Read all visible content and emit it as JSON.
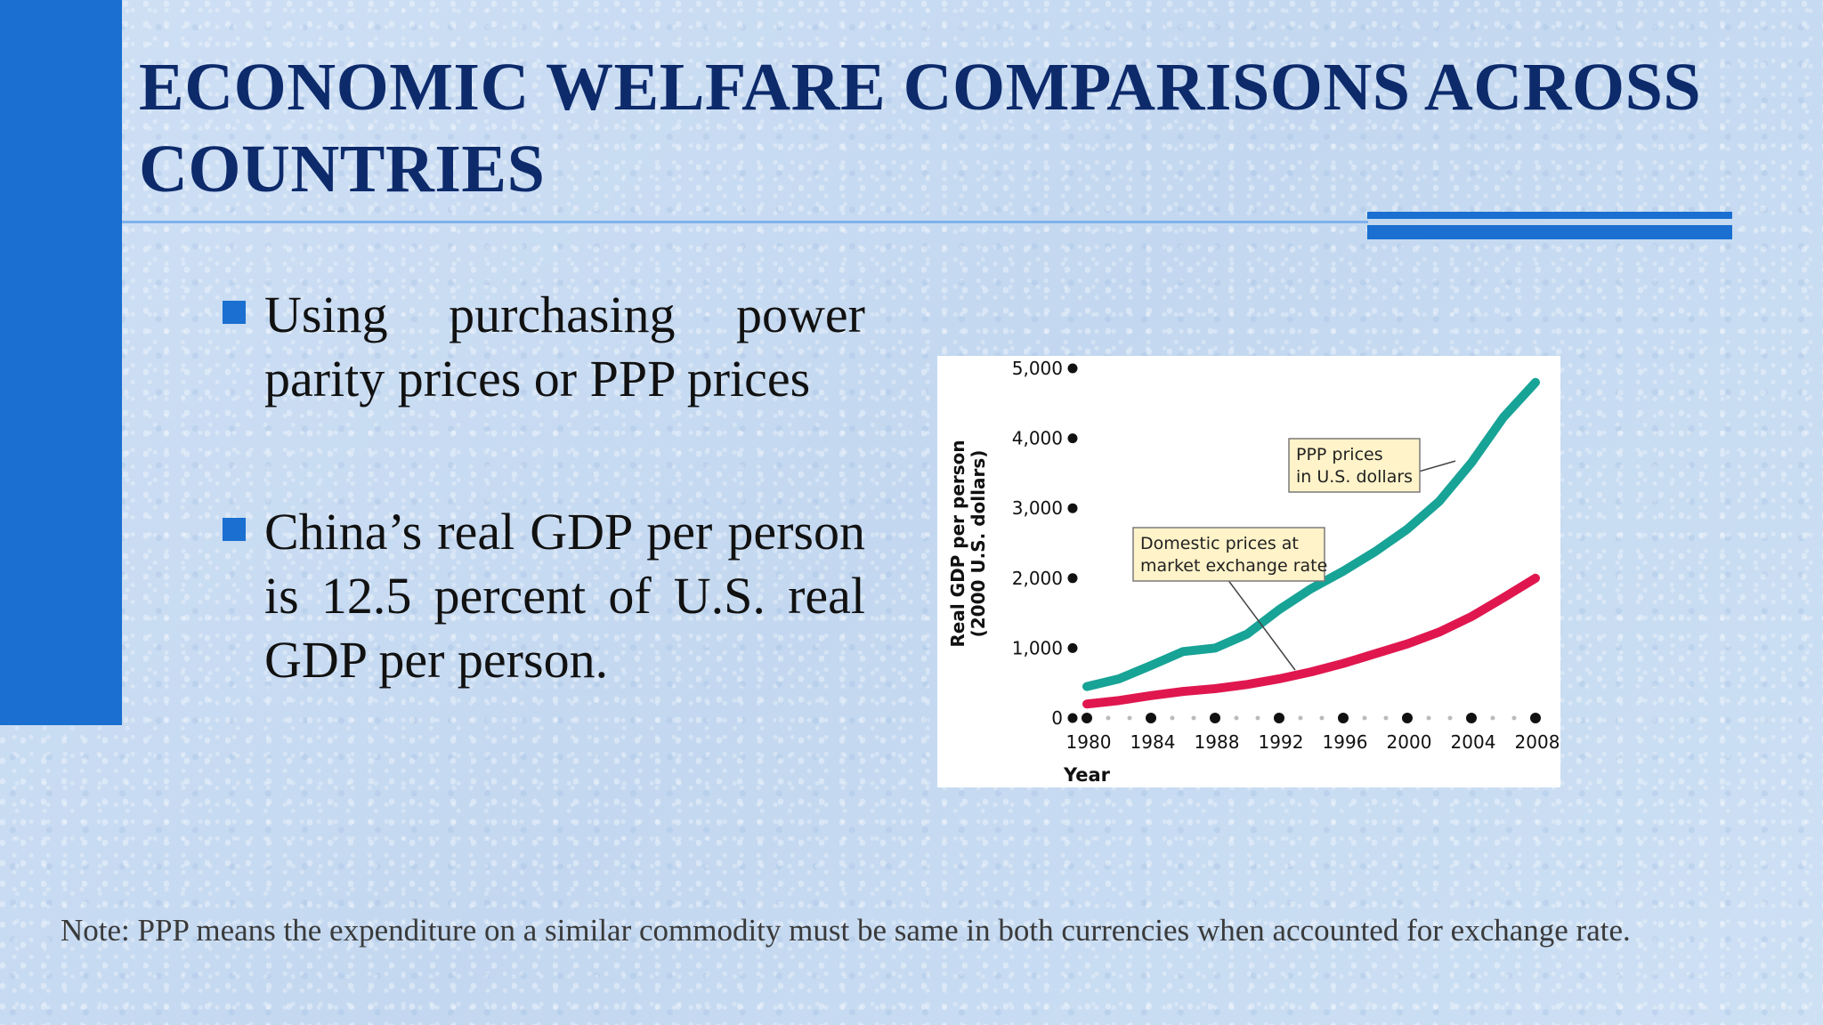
{
  "slide": {
    "title": "ECONOMIC WELFARE COMPARISONS ACROSS COUNTRIES",
    "bullets": [
      "Using purchasing power parity prices or PPP prices",
      "China’s real GDP per person is 12.5 percent of U.S. real GDP per person."
    ],
    "note": "Note: PPP means the expenditure on a similar commodity must be same in both currencies when accounted for exchange rate.",
    "colors": {
      "accent": "#1a6fd0",
      "title": "#0d2a6b",
      "ppp_line": "#17a396",
      "domestic_line": "#e0174f"
    }
  },
  "chart_data": {
    "type": "line",
    "ylabel": "Real GDP per person (2000 U.S. dollars)",
    "xlabel": "Year",
    "x": [
      1980,
      1982,
      1984,
      1986,
      1988,
      1990,
      1992,
      1994,
      1996,
      1998,
      2000,
      2002,
      2004,
      2006,
      2008
    ],
    "xticks": [
      "1980",
      "1984",
      "1988",
      "1992",
      "1996",
      "2000",
      "2004",
      "2008"
    ],
    "yticks": [
      "0",
      "1,000",
      "2,000",
      "3,000",
      "4,000",
      "5,000"
    ],
    "xlim": [
      1980,
      2008
    ],
    "ylim": [
      0,
      5000
    ],
    "series": [
      {
        "key": "ppp",
        "values": [
          450,
          560,
          750,
          950,
          1000,
          1200,
          1550,
          1850,
          2100,
          2380,
          2700,
          3100,
          3650,
          4300,
          4800
        ]
      },
      {
        "key": "domestic",
        "values": [
          200,
          250,
          320,
          380,
          420,
          480,
          560,
          660,
          780,
          920,
          1060,
          1230,
          1450,
          1720,
          2000
        ]
      }
    ],
    "annotations": [
      {
        "series": "ppp",
        "text": [
          "PPP prices",
          "in U.S. dollars"
        ]
      },
      {
        "series": "domestic",
        "text": [
          "Domestic prices at",
          "market exchange rate"
        ]
      }
    ]
  }
}
